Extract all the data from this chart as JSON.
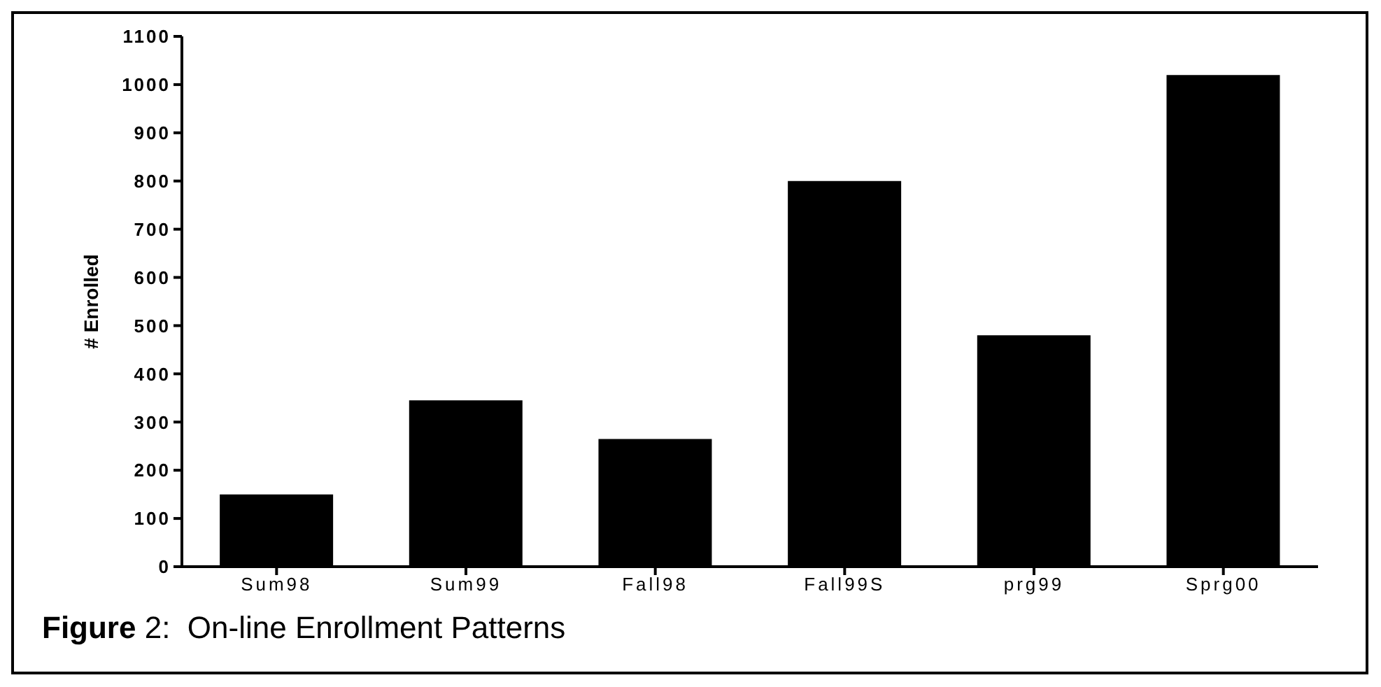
{
  "chart_data": {
    "type": "bar",
    "title": "Figure 2:  On-line Enrollment Patterns",
    "ylabel": "# Enrolled",
    "categories": [
      "Sum98",
      "Sum99",
      "Fall98",
      "Fall99S",
      "prg99",
      "Sprg00"
    ],
    "values": [
      150,
      345,
      265,
      800,
      480,
      1020
    ],
    "color": "#000000",
    "ylim": [
      0,
      1100
    ],
    "yticks": [
      0,
      100,
      200,
      300,
      400,
      500,
      600,
      700,
      800,
      900,
      1000,
      1100
    ],
    "grid": false
  }
}
